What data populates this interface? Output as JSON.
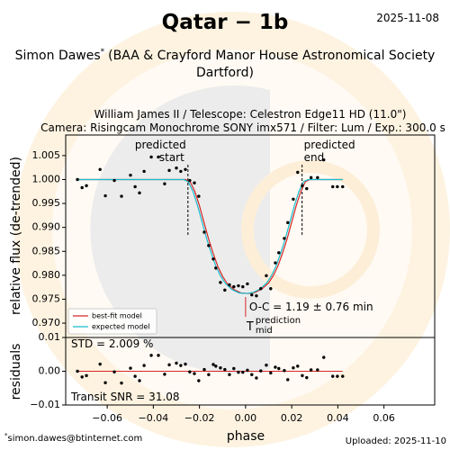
{
  "chart_data": {
    "type": "scatter",
    "title": "Qatar − 1b",
    "date": "2025-11-08",
    "author_name": "Simon Dawes",
    "author_mark": "*",
    "affiliation": [
      "(BAA & Crayford Manor House Astronomical Society",
      "Dartford)"
    ],
    "subtitle": [
      "William James II / Telescope: Celestron Edge11 HD (11.0\")",
      "Camera: Risingcam Monochrome SONY imx571 / Filter: Lum / Exp.: 300.0 s"
    ],
    "xlabel": "phase",
    "ylabel": "relative flux (de-trended)",
    "residual_ylabel": "residuals",
    "color": "#000000",
    "x": [
      -0.0729,
      -0.0709,
      -0.069,
      -0.0631,
      -0.0608,
      -0.0569,
      -0.0538,
      -0.0499,
      -0.0479,
      -0.046,
      -0.044,
      -0.0409,
      -0.0378,
      -0.0351,
      -0.0331,
      -0.03,
      -0.0281,
      -0.0261,
      -0.0242,
      -0.0222,
      -0.0203,
      -0.0179,
      -0.016,
      -0.014,
      -0.0129,
      -0.0109,
      -0.009,
      -0.007,
      -0.0051,
      -0.0031,
      -0.0012,
      0.0008,
      0.0027,
      0.0047,
      0.0066,
      0.009,
      0.0109,
      0.0129,
      0.0144,
      0.0168,
      0.0183,
      0.0207,
      0.0226,
      0.0246,
      0.0265,
      0.0284,
      0.0312,
      0.0339,
      0.0378,
      0.0398,
      0.0421
    ],
    "values": [
      1.0,
      0.9983,
      0.9987,
      1.0021,
      0.9966,
      0.9998,
      0.9965,
      1.0009,
      0.9985,
      0.9972,
      1.0017,
      1.0047,
      1.0047,
      0.9991,
      1.0019,
      1.0024,
      1.0017,
      1.0021,
      0.9998,
      0.9993,
      0.9965,
      0.989,
      0.9862,
      0.9834,
      0.9815,
      0.9785,
      0.9769,
      0.978,
      0.9776,
      0.9778,
      0.9776,
      0.9782,
      0.9759,
      0.9757,
      0.9772,
      0.9799,
      0.9772,
      0.9826,
      0.9847,
      0.9877,
      0.991,
      0.9959,
      1.0015,
      0.9987,
      0.9981,
      1.0004,
      1.0004,
      1.0041,
      0.9985,
      0.9985,
      0.9985
    ],
    "residuals": [
      0.0,
      -0.0017,
      -0.0013,
      0.0021,
      -0.0034,
      -0.0002,
      -0.0035,
      0.0009,
      -0.0015,
      -0.0028,
      0.0017,
      0.0047,
      0.0047,
      -0.0009,
      0.0019,
      0.0024,
      0.0017,
      0.0021,
      -0.0002,
      -0.0007,
      -0.0028,
      0.0005,
      -0.001,
      0.002,
      0.0015,
      0.001,
      0.0005,
      -0.001,
      0.0008,
      -0.0003,
      -0.0003,
      0.0003,
      -0.001,
      -0.002,
      0.0001,
      0.0018,
      -0.0005,
      0.0012,
      0.0008,
      0.0002,
      -0.0025,
      0.001,
      0.0015,
      -0.0013,
      -0.0019,
      0.0004,
      0.0004,
      0.0041,
      -0.0015,
      -0.0015,
      -0.0015
    ],
    "models": [
      {
        "name": "best-fit model",
        "color": "#d62728",
        "x": [
          -0.0729,
          -0.026,
          -0.024,
          -0.022,
          -0.02,
          -0.018,
          -0.016,
          -0.014,
          -0.012,
          -0.01,
          -0.008,
          -0.005,
          -0.002,
          0.001,
          0.004,
          0.007,
          0.01,
          0.012,
          0.014,
          0.016,
          0.018,
          0.02,
          0.022,
          0.024,
          0.026,
          0.028,
          0.0421
        ],
        "values": [
          1.0,
          1.0,
          0.9995,
          0.9975,
          0.9945,
          0.991,
          0.9875,
          0.9845,
          0.9818,
          0.9798,
          0.9783,
          0.977,
          0.9763,
          0.9762,
          0.9764,
          0.9771,
          0.9784,
          0.9799,
          0.9819,
          0.9846,
          0.9876,
          0.9911,
          0.9946,
          0.9976,
          0.9996,
          1.0,
          1.0
        ]
      },
      {
        "name": "expected model",
        "color": "#17becf",
        "x": [
          -0.0729,
          -0.0268,
          -0.0248,
          -0.0228,
          -0.0208,
          -0.0188,
          -0.0168,
          -0.0148,
          -0.0128,
          -0.0108,
          -0.0088,
          -0.0058,
          -0.0028,
          0.0002,
          0.0032,
          0.0062,
          0.0092,
          0.0112,
          0.0132,
          0.0152,
          0.0172,
          0.0192,
          0.0212,
          0.0232,
          0.0252,
          0.0272,
          0.0421
        ],
        "values": [
          1.0,
          1.0,
          0.9995,
          0.9975,
          0.9945,
          0.991,
          0.9875,
          0.9845,
          0.9818,
          0.9798,
          0.9783,
          0.977,
          0.9763,
          0.9762,
          0.9764,
          0.9771,
          0.9784,
          0.9799,
          0.9819,
          0.9846,
          0.9876,
          0.9911,
          0.9946,
          0.9976,
          0.9996,
          1.0,
          1.0
        ]
      }
    ],
    "residual_color": "#d62728",
    "xlim": [
      -0.078,
      0.082
    ],
    "xticks": [
      {
        "value": -0.06,
        "label": "−0.06"
      },
      {
        "value": -0.04,
        "label": "−0.04"
      },
      {
        "value": -0.02,
        "label": "−0.02"
      },
      {
        "value": 0,
        "label": "0.00"
      },
      0.02,
      0.04,
      0.06
    ],
    "ylim": [
      0.967,
      1.0093
    ],
    "yticks": [
      {
        "value": 0.97,
        "label": "0.970"
      },
      0.975,
      {
        "value": 0.98,
        "label": "0.980"
      },
      0.985,
      {
        "value": 0.99,
        "label": "0.990"
      },
      0.995,
      {
        "value": 1.0,
        "label": "1.000"
      },
      1.005
    ],
    "residual_ylim": [
      -0.01,
      0.01
    ],
    "residual_yticks": [
      {
        "value": -0.01,
        "label": "−0.01"
      },
      {
        "value": 0,
        "label": "0.00"
      },
      0.01
    ],
    "predicted_start": -0.025,
    "predicted_end": 0.0245,
    "tmid": 0,
    "annotations": {
      "start": [
        "predicted",
        "start"
      ],
      "end": [
        "predicted",
        "end"
      ],
      "oc": "O-C = 1.19 ± 0.76 min",
      "tmid": {
        "base": "T",
        "sup": "prediction",
        "sub": "mid"
      },
      "std": "STD = 2.009 %",
      "snr": "Transit SNR = 31.08"
    },
    "legend_loc": "lower left",
    "email": "simon.dawes@btinternet.com",
    "uploaded": "Uploaded: 2025-11-10"
  }
}
